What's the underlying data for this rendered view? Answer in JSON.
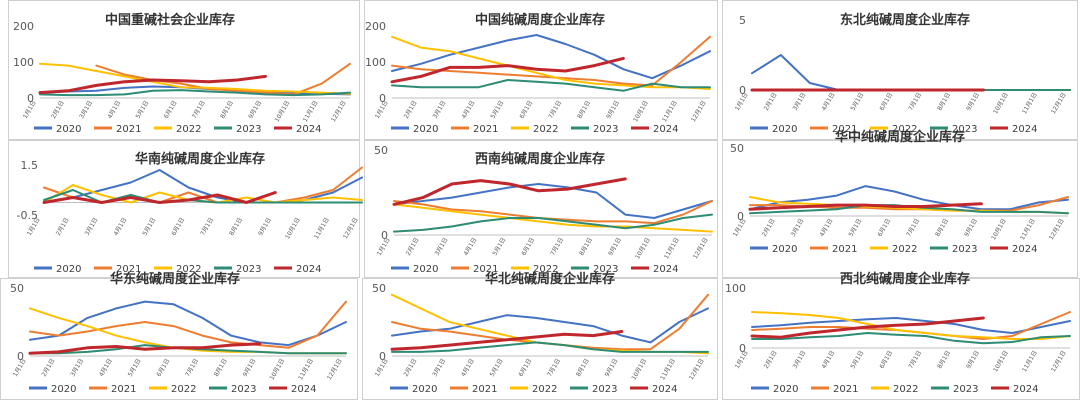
{
  "months": [
    "1月1日",
    "2月1日",
    "3月1日",
    "4月1日",
    "5月1日",
    "6月1日",
    "7月1日",
    "8月1日",
    "9月1日",
    "10月1日",
    "11月1日",
    "12月1日"
  ],
  "legend": [
    {
      "name": "2020",
      "color": "#4472C4"
    },
    {
      "name": "2021",
      "color": "#ED7D31"
    },
    {
      "name": "2022",
      "color": "#FFC000"
    },
    {
      "name": "2023",
      "color": "#2E8B74"
    },
    {
      "name": "2024",
      "color": "#C0272D"
    }
  ],
  "chart_data": [
    {
      "type": "line",
      "title": "中国重碱社会企业库存",
      "yticks": [
        "200",
        "100",
        "0"
      ],
      "ylim": [
        0,
        200
      ],
      "series": [
        {
          "name": "2020",
          "values": [
            15,
            18,
            20,
            28,
            32,
            30,
            25,
            22,
            18,
            15,
            12,
            10
          ]
        },
        {
          "name": "2021",
          "values": [
            null,
            null,
            90,
            65,
            50,
            40,
            25,
            20,
            15,
            10,
            40,
            95
          ]
        },
        {
          "name": "2022",
          "values": [
            95,
            90,
            75,
            60,
            45,
            30,
            28,
            25,
            20,
            18,
            15,
            12
          ]
        },
        {
          "name": "2023",
          "values": [
            10,
            8,
            8,
            10,
            20,
            22,
            18,
            15,
            10,
            8,
            10,
            15
          ]
        },
        {
          "name": "2024",
          "values": [
            15,
            20,
            35,
            45,
            50,
            48,
            45,
            50,
            60,
            null,
            null,
            null
          ]
        }
      ]
    },
    {
      "type": "line",
      "title": "中国纯碱周度企业库存",
      "yticks": [
        "200",
        "100",
        "0"
      ],
      "ylim": [
        0,
        200
      ],
      "series": [
        {
          "name": "2020",
          "values": [
            75,
            95,
            120,
            140,
            160,
            175,
            150,
            120,
            80,
            55,
            90,
            130
          ]
        },
        {
          "name": "2021",
          "values": [
            90,
            80,
            75,
            70,
            65,
            60,
            55,
            50,
            40,
            35,
            100,
            170
          ]
        },
        {
          "name": "2022",
          "values": [
            170,
            140,
            130,
            110,
            90,
            70,
            50,
            40,
            35,
            30,
            30,
            25
          ]
        },
        {
          "name": "2023",
          "values": [
            35,
            30,
            30,
            30,
            50,
            45,
            40,
            30,
            20,
            40,
            30,
            30
          ]
        },
        {
          "name": "2024",
          "values": [
            45,
            60,
            85,
            85,
            90,
            80,
            75,
            90,
            110,
            null,
            null,
            null
          ]
        }
      ]
    },
    {
      "type": "line",
      "title": "东北纯碱周度企业库存",
      "yticks": [
        "5",
        "0"
      ],
      "ylim": [
        0,
        5
      ],
      "series": [
        {
          "name": "2020",
          "values": [
            1.2,
            2.5,
            0.5,
            0,
            0,
            0,
            0,
            0,
            0,
            0,
            0,
            0
          ]
        },
        {
          "name": "2021",
          "values": [
            0,
            0,
            0,
            0,
            0,
            0,
            0,
            0,
            0,
            0,
            0,
            0
          ]
        },
        {
          "name": "2022",
          "values": [
            0,
            0,
            0,
            0,
            0,
            0,
            0,
            0,
            0,
            0,
            0,
            0
          ]
        },
        {
          "name": "2023",
          "values": [
            0,
            0,
            0,
            0,
            0,
            0,
            0,
            0,
            0,
            0,
            0,
            0
          ]
        },
        {
          "name": "2024",
          "values": [
            0,
            0,
            0,
            0,
            0,
            0,
            0,
            0,
            0,
            null,
            null,
            null
          ]
        }
      ]
    },
    {
      "type": "line",
      "title": "华南纯碱周度企业库存",
      "yticks": [
        "1.5",
        "-0.5"
      ],
      "ylim": [
        -0.5,
        1.5
      ],
      "series": [
        {
          "name": "2020",
          "values": [
            0,
            0.2,
            0.5,
            0.8,
            1.3,
            0.6,
            0.2,
            0,
            0,
            0.1,
            0.4,
            1.0
          ]
        },
        {
          "name": "2021",
          "values": [
            0.6,
            0.2,
            0,
            0.3,
            0,
            0.4,
            0,
            0,
            0,
            0.2,
            0.5,
            1.4
          ]
        },
        {
          "name": "2022",
          "values": [
            0,
            0.7,
            0.3,
            0,
            0.4,
            0.1,
            0,
            0.2,
            0,
            0.1,
            0.2,
            0.1
          ]
        },
        {
          "name": "2023",
          "values": [
            0.1,
            0.5,
            0,
            0.3,
            0,
            0.1,
            0,
            0,
            0,
            0,
            0,
            0
          ]
        },
        {
          "name": "2024",
          "values": [
            0,
            0.2,
            0,
            0.2,
            0,
            0.1,
            0.3,
            0,
            0.4,
            null,
            null,
            null
          ]
        }
      ]
    },
    {
      "type": "line",
      "title": "西南纯碱周度企业库存",
      "yticks": [
        "50",
        "0"
      ],
      "ylim": [
        0,
        50
      ],
      "series": [
        {
          "name": "2020",
          "values": [
            18,
            20,
            22,
            25,
            28,
            30,
            28,
            25,
            12,
            10,
            15,
            20
          ]
        },
        {
          "name": "2021",
          "values": [
            20,
            18,
            15,
            14,
            12,
            10,
            9,
            8,
            8,
            7,
            12,
            20
          ]
        },
        {
          "name": "2022",
          "values": [
            18,
            16,
            14,
            12,
            10,
            8,
            6,
            5,
            5,
            4,
            3,
            2
          ]
        },
        {
          "name": "2023",
          "values": [
            2,
            3,
            5,
            8,
            10,
            10,
            8,
            6,
            4,
            6,
            10,
            12
          ]
        },
        {
          "name": "2024",
          "values": [
            18,
            22,
            30,
            32,
            30,
            26,
            27,
            30,
            33,
            null,
            null,
            null
          ]
        }
      ]
    },
    {
      "type": "line",
      "title": "华中纯碱周度企业库存",
      "yticks": [
        "50",
        "0"
      ],
      "ylim": [
        0,
        50
      ],
      "series": [
        {
          "name": "2020",
          "values": [
            5,
            10,
            12,
            15,
            22,
            18,
            12,
            8,
            5,
            5,
            10,
            12
          ]
        },
        {
          "name": "2021",
          "values": [
            8,
            8,
            7,
            6,
            6,
            5,
            5,
            4,
            4,
            4,
            8,
            14
          ]
        },
        {
          "name": "2022",
          "values": [
            14,
            10,
            9,
            8,
            7,
            6,
            5,
            4,
            4,
            3,
            3,
            2
          ]
        },
        {
          "name": "2023",
          "values": [
            2,
            3,
            4,
            5,
            8,
            8,
            6,
            5,
            3,
            3,
            3,
            2
          ]
        },
        {
          "name": "2024",
          "values": [
            5,
            6,
            7,
            8,
            8,
            7,
            7,
            8,
            9,
            null,
            null,
            null
          ]
        }
      ]
    },
    {
      "type": "line",
      "title": "华东纯碱周度企业库存",
      "yticks": [
        "50",
        "0"
      ],
      "ylim": [
        0,
        50
      ],
      "series": [
        {
          "name": "2020",
          "values": [
            12,
            15,
            28,
            35,
            40,
            38,
            28,
            15,
            10,
            8,
            15,
            25
          ]
        },
        {
          "name": "2021",
          "values": [
            18,
            15,
            18,
            22,
            25,
            22,
            15,
            10,
            8,
            6,
            15,
            40
          ]
        },
        {
          "name": "2022",
          "values": [
            35,
            28,
            22,
            15,
            10,
            6,
            4,
            3,
            3,
            2,
            2,
            2
          ]
        },
        {
          "name": "2023",
          "values": [
            2,
            2,
            3,
            5,
            8,
            6,
            5,
            4,
            3,
            2,
            2,
            2
          ]
        },
        {
          "name": "2024",
          "values": [
            2,
            3,
            6,
            7,
            5,
            6,
            6,
            8,
            9,
            null,
            null,
            null
          ]
        }
      ]
    },
    {
      "type": "line",
      "title": "华北纯碱周度企业库存",
      "yticks": [
        "50",
        "0"
      ],
      "ylim": [
        0,
        50
      ],
      "series": [
        {
          "name": "2020",
          "values": [
            15,
            18,
            20,
            25,
            30,
            28,
            25,
            22,
            15,
            10,
            25,
            35
          ]
        },
        {
          "name": "2021",
          "values": [
            25,
            20,
            18,
            15,
            12,
            10,
            8,
            6,
            5,
            5,
            20,
            45
          ]
        },
        {
          "name": "2022",
          "values": [
            45,
            35,
            25,
            20,
            15,
            10,
            8,
            5,
            4,
            3,
            3,
            2
          ]
        },
        {
          "name": "2023",
          "values": [
            3,
            3,
            4,
            6,
            8,
            10,
            8,
            5,
            3,
            3,
            3,
            3
          ]
        },
        {
          "name": "2024",
          "values": [
            5,
            6,
            8,
            10,
            12,
            14,
            16,
            15,
            18,
            null,
            null,
            null
          ]
        }
      ]
    },
    {
      "type": "line",
      "title": "西北纯碱周度企业库存",
      "yticks": [
        "100",
        "0"
      ],
      "ylim": [
        0,
        100
      ],
      "series": [
        {
          "name": "2020",
          "values": [
            35,
            38,
            42,
            45,
            48,
            50,
            45,
            40,
            30,
            25,
            35,
            45
          ]
        },
        {
          "name": "2021",
          "values": [
            30,
            32,
            35,
            35,
            32,
            30,
            25,
            20,
            15,
            20,
            40,
            60
          ]
        },
        {
          "name": "2022",
          "values": [
            60,
            58,
            55,
            50,
            40,
            30,
            25,
            20,
            18,
            15,
            15,
            20
          ]
        },
        {
          "name": "2023",
          "values": [
            15,
            15,
            18,
            20,
            25,
            22,
            20,
            12,
            8,
            10,
            18,
            20
          ]
        },
        {
          "name": "2024",
          "values": [
            20,
            18,
            25,
            30,
            35,
            38,
            40,
            45,
            50,
            null,
            null,
            null
          ]
        }
      ]
    }
  ]
}
